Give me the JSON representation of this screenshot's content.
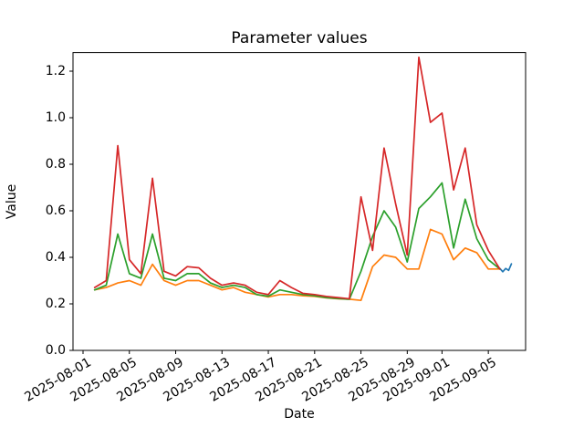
{
  "chart_data": {
    "type": "line",
    "title": "Parameter values",
    "xlabel": "Date",
    "ylabel": "Value",
    "ylim": [
      0.0,
      1.28
    ],
    "grid": false,
    "legend": "none",
    "ytick_labels": [
      "0.0",
      "0.2",
      "0.4",
      "0.6",
      "0.8",
      "1.0",
      "1.2"
    ],
    "xtick_labels": [
      "2025-08-01",
      "2025-08-05",
      "2025-08-09",
      "2025-08-13",
      "2025-08-17",
      "2025-08-21",
      "2025-08-25",
      "2025-08-29",
      "2025-09-01",
      "2025-09-05"
    ],
    "dates": [
      "2025-08-02",
      "2025-08-03",
      "2025-08-04",
      "2025-08-05",
      "2025-08-06",
      "2025-08-07",
      "2025-08-08",
      "2025-08-09",
      "2025-08-10",
      "2025-08-11",
      "2025-08-12",
      "2025-08-13",
      "2025-08-14",
      "2025-08-15",
      "2025-08-16",
      "2025-08-17",
      "2025-08-18",
      "2025-08-19",
      "2025-08-20",
      "2025-08-21",
      "2025-08-22",
      "2025-08-23",
      "2025-08-24",
      "2025-08-25",
      "2025-08-26",
      "2025-08-27",
      "2025-08-28",
      "2025-08-29",
      "2025-08-30",
      "2025-08-31",
      "2025-09-01",
      "2025-09-02",
      "2025-09-03",
      "2025-09-04",
      "2025-09-05",
      "2025-09-06"
    ],
    "series": [
      {
        "name": "blue",
        "color": "#1f77b4",
        "x": [
          "2025-09-06T00:00",
          "2025-09-06T06:00",
          "2025-09-06T12:00",
          "2025-09-06T18:00",
          "2025-09-07T00:00"
        ],
        "values": [
          0.352,
          0.338,
          0.352,
          0.344,
          0.372
        ]
      },
      {
        "name": "orange",
        "color": "#ff7f0e",
        "values": [
          0.26,
          0.27,
          0.29,
          0.3,
          0.28,
          0.37,
          0.3,
          0.28,
          0.3,
          0.3,
          0.28,
          0.26,
          0.27,
          0.25,
          0.24,
          0.23,
          0.24,
          0.24,
          0.235,
          0.232,
          0.226,
          0.222,
          0.22,
          0.215,
          0.36,
          0.41,
          0.4,
          0.35,
          0.35,
          0.52,
          0.5,
          0.39,
          0.44,
          0.42,
          0.35,
          0.35
        ]
      },
      {
        "name": "green",
        "color": "#2ca02c",
        "values": [
          0.26,
          0.28,
          0.5,
          0.33,
          0.31,
          0.5,
          0.31,
          0.3,
          0.33,
          0.33,
          0.29,
          0.27,
          0.28,
          0.27,
          0.24,
          0.233,
          0.26,
          0.25,
          0.24,
          0.235,
          0.227,
          0.223,
          0.22,
          0.34,
          0.49,
          0.6,
          0.53,
          0.38,
          0.61,
          0.66,
          0.72,
          0.44,
          0.65,
          0.48,
          0.39,
          0.35
        ]
      },
      {
        "name": "red",
        "color": "#d62728",
        "values": [
          0.27,
          0.3,
          0.88,
          0.39,
          0.33,
          0.74,
          0.34,
          0.32,
          0.36,
          0.355,
          0.31,
          0.28,
          0.29,
          0.28,
          0.25,
          0.24,
          0.3,
          0.27,
          0.245,
          0.24,
          0.232,
          0.227,
          0.222,
          0.66,
          0.43,
          0.87,
          0.63,
          0.41,
          1.26,
          0.98,
          1.02,
          0.69,
          0.87,
          0.54,
          0.43,
          0.35
        ]
      }
    ]
  }
}
